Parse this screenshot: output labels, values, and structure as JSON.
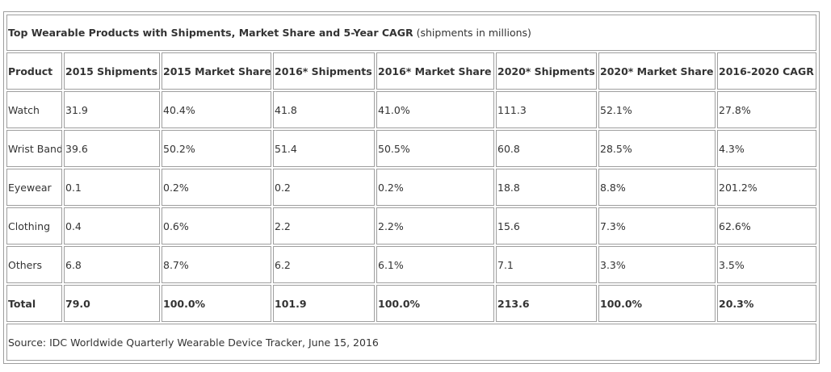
{
  "table": {
    "caption_title": "Top Wearable Products with Shipments, Market Share and 5-Year CAGR",
    "caption_note": "(shipments in millions)",
    "columns": [
      "Product",
      "2015 Shipments",
      "2015 Market Share",
      "2016* Shipments",
      "2016* Market Share",
      "2020* Shipments",
      "2020* Market Share",
      "2016-2020 CAGR"
    ],
    "rows": [
      [
        "Watch",
        "31.9",
        "40.4%",
        "41.8",
        "41.0%",
        "111.3",
        "52.1%",
        "27.8%"
      ],
      [
        "Wrist Band",
        "39.6",
        "50.2%",
        "51.4",
        "50.5%",
        "60.8",
        "28.5%",
        "4.3%"
      ],
      [
        "Eyewear",
        "0.1",
        "0.2%",
        "0.2",
        "0.2%",
        "18.8",
        "8.8%",
        "201.2%"
      ],
      [
        "Clothing",
        "0.4",
        "0.6%",
        "2.2",
        "2.2%",
        "15.6",
        "7.3%",
        "62.6%"
      ],
      [
        "Others",
        "6.8",
        "8.7%",
        "6.2",
        "6.1%",
        "7.1",
        "3.3%",
        "3.5%"
      ]
    ],
    "total": [
      "Total",
      "79.0",
      "100.0%",
      "101.9",
      "100.0%",
      "213.6",
      "100.0%",
      "20.3%"
    ],
    "source": "Source: IDC Worldwide Quarterly Wearable Device Tracker, June 15, 2016"
  }
}
